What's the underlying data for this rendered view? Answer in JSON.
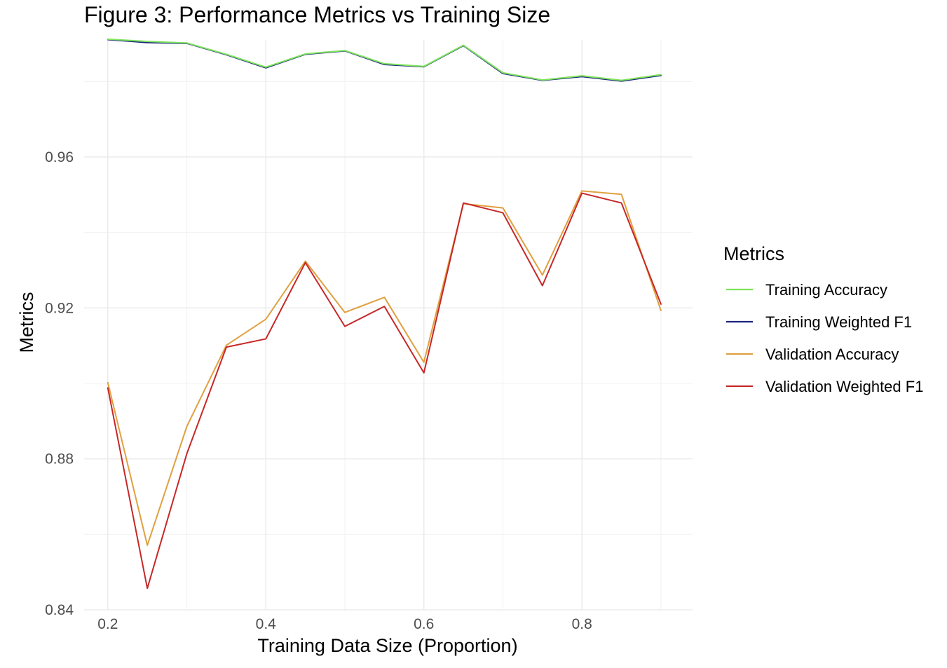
{
  "chart_data": {
    "type": "line",
    "title": "Figure 3: Performance Metrics vs Training Size",
    "xlabel": "Training Data Size (Proportion)",
    "ylabel": "Metrics",
    "xlim": [
      0.17,
      0.94
    ],
    "ylim": [
      0.84,
      0.991
    ],
    "x_ticks": [
      0.2,
      0.4,
      0.6,
      0.8
    ],
    "x_tick_labels": [
      "0.2",
      "0.4",
      "0.6",
      "0.8"
    ],
    "y_ticks": [
      0.84,
      0.88,
      0.92,
      0.96
    ],
    "y_tick_labels": [
      "0.84",
      "0.88",
      "0.92",
      "0.96"
    ],
    "grid": true,
    "legend_title": "Metrics",
    "legend_position": "right",
    "x": [
      0.2,
      0.25,
      0.3,
      0.35,
      0.4,
      0.45,
      0.5,
      0.55,
      0.6,
      0.65,
      0.7,
      0.75,
      0.8,
      0.85,
      0.9
    ],
    "series": [
      {
        "name": "Training Weighted F1",
        "color": "#1a237e",
        "values": [
          0.9911,
          0.9903,
          0.9901,
          0.9871,
          0.9836,
          0.9872,
          0.9881,
          0.9845,
          0.9839,
          0.9895,
          0.9821,
          0.9803,
          0.9813,
          0.9801,
          0.9816
        ]
      },
      {
        "name": "Training Accuracy",
        "color": "#7ee35a",
        "values": [
          0.9912,
          0.9906,
          0.9902,
          0.9872,
          0.9838,
          0.9873,
          0.9882,
          0.9847,
          0.984,
          0.9896,
          0.9823,
          0.9804,
          0.9815,
          0.9803,
          0.9818
        ]
      },
      {
        "name": "Validation Accuracy",
        "color": "#e0a040",
        "values": [
          0.9002,
          0.8571,
          0.8886,
          0.9101,
          0.917,
          0.9324,
          0.9188,
          0.9228,
          0.9056,
          0.9476,
          0.9465,
          0.9287,
          0.951,
          0.9501,
          0.9193
        ]
      },
      {
        "name": "Validation Weighted F1",
        "color": "#c62828",
        "values": [
          0.8988,
          0.8457,
          0.8814,
          0.9096,
          0.9118,
          0.932,
          0.9151,
          0.9204,
          0.9028,
          0.9478,
          0.9452,
          0.9259,
          0.9504,
          0.9478,
          0.921
        ]
      }
    ],
    "legend_order": [
      "Training Accuracy",
      "Training Weighted F1",
      "Validation Accuracy",
      "Validation Weighted F1"
    ]
  }
}
